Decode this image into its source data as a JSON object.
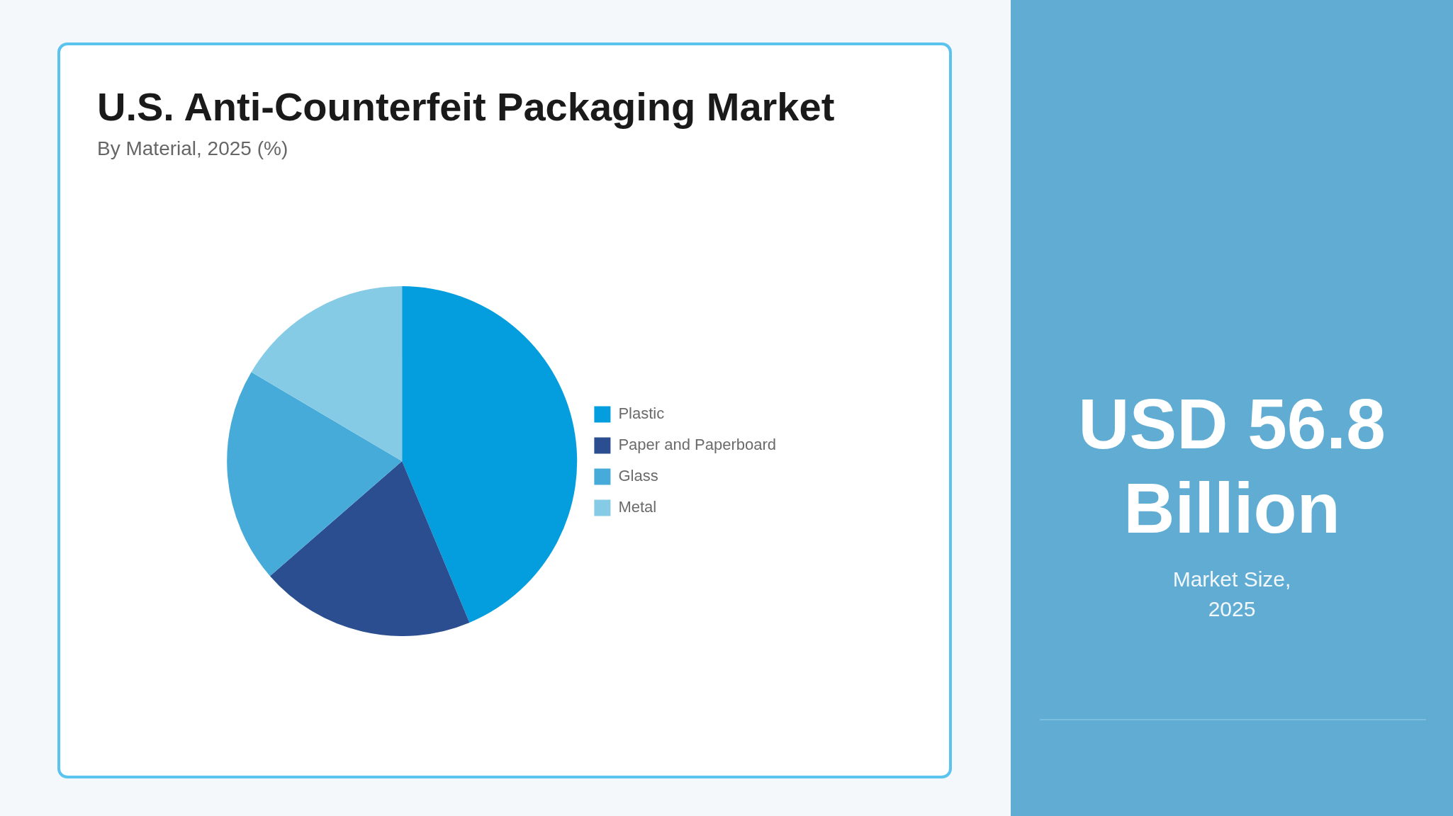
{
  "chart_data": {
    "type": "pie",
    "title": "U.S. Anti-Counterfeit Packaging Market",
    "subtitle": "By Material, 2025 (%)",
    "categories": [
      "Plastic",
      "Paper and Paperboard",
      "Glass",
      "Metal"
    ],
    "values": [
      43.7,
      19.9,
      19.9,
      16.5
    ],
    "colors": [
      "#049ede",
      "#2a4e8f",
      "#46abd9",
      "#85cbe5"
    ],
    "legend": "right",
    "annotations": [
      "USD 56.8 Billion",
      "Market Size, 2025"
    ]
  }
}
